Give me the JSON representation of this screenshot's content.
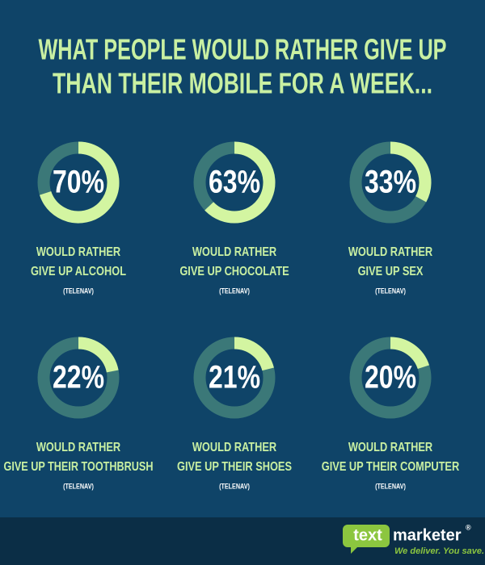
{
  "title": [
    "WHAT PEOPLE WOULD RATHER GIVE UP",
    "THAN THEIR MOBILE FOR A WEEK..."
  ],
  "chart_data": [
    {
      "type": "donut",
      "values": [
        70
      ],
      "value_labels": [
        "70%"
      ],
      "label": [
        "WOULD RATHER",
        "GIVE UP ALCOHOL"
      ],
      "source": "(TELENAV)",
      "color": "#d3f5a1",
      "track_color": "#3b7878"
    },
    {
      "type": "donut",
      "values": [
        63
      ],
      "value_labels": [
        "63%"
      ],
      "label": [
        "WOULD RATHER",
        "GIVE UP CHOCOLATE"
      ],
      "source": "(TELENAV)",
      "color": "#d3f5a1",
      "track_color": "#3b7878"
    },
    {
      "type": "donut",
      "values": [
        33
      ],
      "value_labels": [
        "33%"
      ],
      "label": [
        "WOULD RATHER",
        "GIVE UP SEX"
      ],
      "source": "(TELENAV)",
      "color": "#d3f5a1",
      "track_color": "#3b7878"
    },
    {
      "type": "donut",
      "values": [
        22
      ],
      "value_labels": [
        "22%"
      ],
      "label": [
        "WOULD RATHER",
        "GIVE UP THEIR TOOTHBRUSH"
      ],
      "source": "(TELENAV)",
      "color": "#d3f5a1",
      "track_color": "#3b7878"
    },
    {
      "type": "donut",
      "values": [
        21
      ],
      "value_labels": [
        "21%"
      ],
      "label": [
        "WOULD RATHER",
        "GIVE UP THEIR SHOES"
      ],
      "source": "(TELENAV)",
      "color": "#d3f5a1",
      "track_color": "#3b7878"
    },
    {
      "type": "donut",
      "values": [
        20
      ],
      "value_labels": [
        "20%"
      ],
      "label": [
        "WOULD RATHER",
        "GIVE UP THEIR COMPUTER"
      ],
      "source": "(TELENAV)",
      "color": "#d3f5a1",
      "track_color": "#3b7878"
    }
  ],
  "footer": {
    "logo_left": "text",
    "logo_right": "marketer",
    "mark": "®",
    "tagline": "We deliver. You save."
  }
}
